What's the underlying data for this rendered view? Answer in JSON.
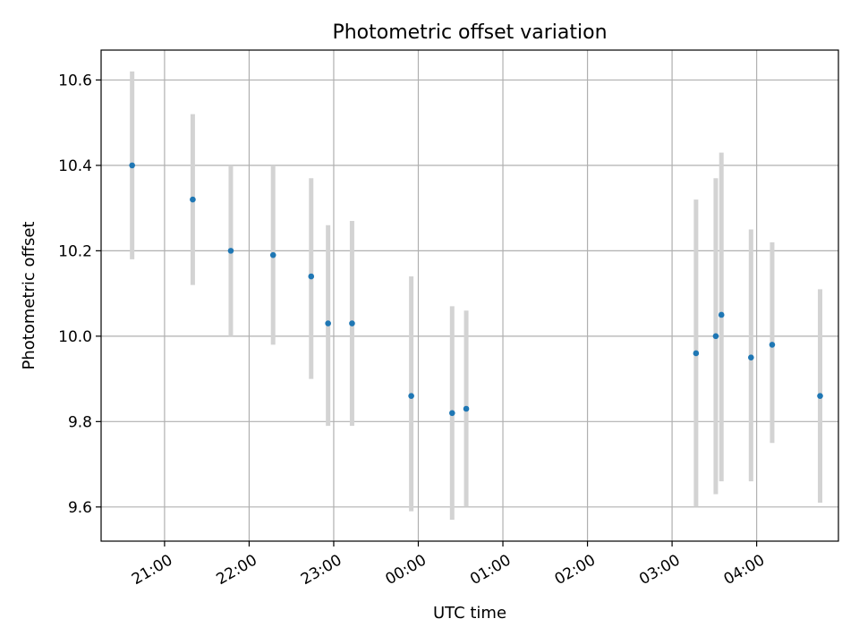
{
  "chart_data": {
    "type": "scatter",
    "title": "Photometric offset variation",
    "xlabel": "UTC time",
    "ylabel": "Photometric offset",
    "xlim": [
      "20:15",
      "04:58"
    ],
    "ylim": [
      9.52,
      10.67
    ],
    "grid": true,
    "x_ticks": [
      "21:00",
      "22:00",
      "23:00",
      "00:00",
      "01:00",
      "02:00",
      "03:00",
      "04:00"
    ],
    "y_ticks": [
      "9.6",
      "9.8",
      "10.0",
      "10.2",
      "10.4",
      "10.6"
    ],
    "points": [
      {
        "x": "20:37",
        "y": 10.4,
        "err_low": 10.18,
        "err_high": 10.62
      },
      {
        "x": "21:20",
        "y": 10.32,
        "err_low": 10.12,
        "err_high": 10.52
      },
      {
        "x": "21:47",
        "y": 10.2,
        "err_low": 10.0,
        "err_high": 10.4
      },
      {
        "x": "22:17",
        "y": 10.19,
        "err_low": 9.98,
        "err_high": 10.4
      },
      {
        "x": "22:44",
        "y": 10.14,
        "err_low": 9.9,
        "err_high": 10.37
      },
      {
        "x": "22:56",
        "y": 10.03,
        "err_low": 9.79,
        "err_high": 10.26
      },
      {
        "x": "23:13",
        "y": 10.03,
        "err_low": 9.79,
        "err_high": 10.27
      },
      {
        "x": "23:55",
        "y": 9.86,
        "err_low": 9.59,
        "err_high": 10.14
      },
      {
        "x": "00:24",
        "y": 9.82,
        "err_low": 9.57,
        "err_high": 10.07
      },
      {
        "x": "00:34",
        "y": 9.83,
        "err_low": 9.6,
        "err_high": 10.06
      },
      {
        "x": "03:17",
        "y": 9.96,
        "err_low": 9.6,
        "err_high": 10.32
      },
      {
        "x": "03:31",
        "y": 10.0,
        "err_low": 9.63,
        "err_high": 10.37
      },
      {
        "x": "03:35",
        "y": 10.05,
        "err_low": 9.66,
        "err_high": 10.43
      },
      {
        "x": "03:56",
        "y": 9.95,
        "err_low": 9.66,
        "err_high": 10.25
      },
      {
        "x": "04:11",
        "y": 9.98,
        "err_low": 9.75,
        "err_high": 10.22
      },
      {
        "x": "04:45",
        "y": 9.86,
        "err_low": 9.61,
        "err_high": 10.11
      }
    ],
    "colors": {
      "point": "#1f77b4",
      "errorbar": "#d3d3d3",
      "grid": "#b0b0b0",
      "axes": "#000000"
    }
  }
}
